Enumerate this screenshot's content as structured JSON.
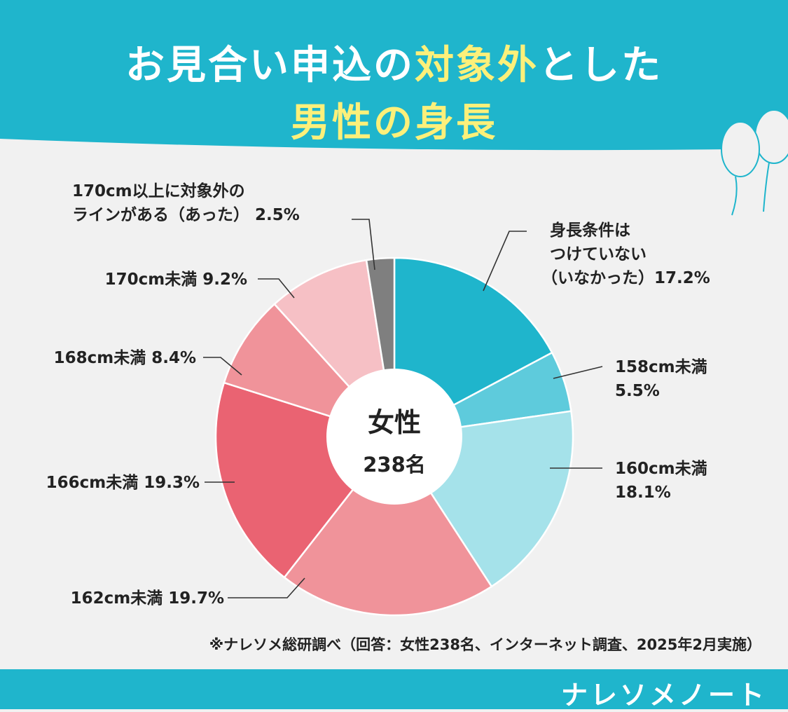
{
  "header": {
    "title_line1_a": "お見合い申込の",
    "title_line1_b": "対象外",
    "title_line1_c": "とした",
    "title_line2": "男性の身長"
  },
  "colors": {
    "header_bg": "#1fb5cc",
    "title_accent": "#fcf07a",
    "background": "#f1f1f1"
  },
  "chart_data": {
    "type": "pie",
    "donut": true,
    "center_label": "女性",
    "center_count": "238名",
    "slices": [
      {
        "label": "身長条件はつけていない（いなかった）",
        "value": 17.2,
        "value_label": "17.2%",
        "color": "#1fb5cc"
      },
      {
        "label": "158cm未満",
        "value": 5.5,
        "value_label": "5.5%",
        "color": "#5ecbdc"
      },
      {
        "label": "160cm未満",
        "value": 18.1,
        "value_label": "18.1%",
        "color": "#a5e2ea"
      },
      {
        "label": "162cm未満",
        "value": 19.7,
        "value_label": "19.7%",
        "color": "#f0939a"
      },
      {
        "label": "166cm未満",
        "value": 19.3,
        "value_label": "19.3%",
        "color": "#ea6372"
      },
      {
        "label": "168cm未満",
        "value": 8.4,
        "value_label": "8.4%",
        "color": "#f0939a"
      },
      {
        "label": "170cm未満",
        "value": 9.2,
        "value_label": "9.2%",
        "color": "#f6c0c5"
      },
      {
        "label": "170cm以上に対象外のラインがある（あった）",
        "value": 2.5,
        "value_label": "2.5%",
        "color": "#7f7f7f"
      }
    ]
  },
  "labels": {
    "s0_l1": "身長条件は",
    "s0_l2": "つけていない",
    "s0_l3": "（いなかった）17.2%",
    "s1_l1": "158cm未満",
    "s1_l2": "5.5%",
    "s2_l1": "160cm未満",
    "s2_l2": "18.1%",
    "s3": "162cm未満  19.7%",
    "s4": "166cm未満  19.3%",
    "s5": "168cm未満  8.4%",
    "s6": "170cm未満  9.2%",
    "s7_l1": "170cm以上に対象外の",
    "s7_l2": "ラインがある（あった） 2.5%"
  },
  "note": "※ナレソメ総研調べ（回答：女性238名、インターネット調査、2025年2月実施）",
  "footer": {
    "brand": "ナレソメノート"
  }
}
